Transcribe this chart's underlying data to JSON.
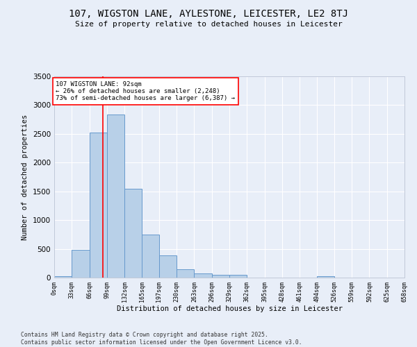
{
  "title": "107, WIGSTON LANE, AYLESTONE, LEICESTER, LE2 8TJ",
  "subtitle": "Size of property relative to detached houses in Leicester",
  "xlabel": "Distribution of detached houses by size in Leicester",
  "ylabel": "Number of detached properties",
  "bar_color": "#b8d0e8",
  "bar_edge_color": "#6699cc",
  "background_color": "#e8eef8",
  "grid_color": "#ffffff",
  "annotation_text": "107 WIGSTON LANE: 92sqm\n← 26% of detached houses are smaller (2,248)\n73% of semi-detached houses are larger (6,387) →",
  "vline_x": 92,
  "vline_color": "red",
  "annotation_box_color": "white",
  "annotation_box_edge": "red",
  "bins": [
    0,
    33,
    66,
    99,
    132,
    165,
    197,
    230,
    263,
    296,
    329,
    362,
    395,
    428,
    461,
    494,
    526,
    559,
    592,
    625,
    658
  ],
  "bin_labels": [
    "0sqm",
    "33sqm",
    "66sqm",
    "99sqm",
    "132sqm",
    "165sqm",
    "197sqm",
    "230sqm",
    "263sqm",
    "296sqm",
    "329sqm",
    "362sqm",
    "395sqm",
    "428sqm",
    "461sqm",
    "494sqm",
    "526sqm",
    "559sqm",
    "592sqm",
    "625sqm",
    "658sqm"
  ],
  "bar_heights": [
    20,
    480,
    2520,
    2840,
    1540,
    750,
    390,
    140,
    70,
    50,
    50,
    0,
    0,
    0,
    0,
    30,
    0,
    0,
    0,
    0
  ],
  "ylim": [
    0,
    3500
  ],
  "yticks": [
    0,
    500,
    1000,
    1500,
    2000,
    2500,
    3000,
    3500
  ],
  "footer": "Contains HM Land Registry data © Crown copyright and database right 2025.\nContains public sector information licensed under the Open Government Licence v3.0.",
  "figsize": [
    6.0,
    5.0
  ],
  "dpi": 100
}
